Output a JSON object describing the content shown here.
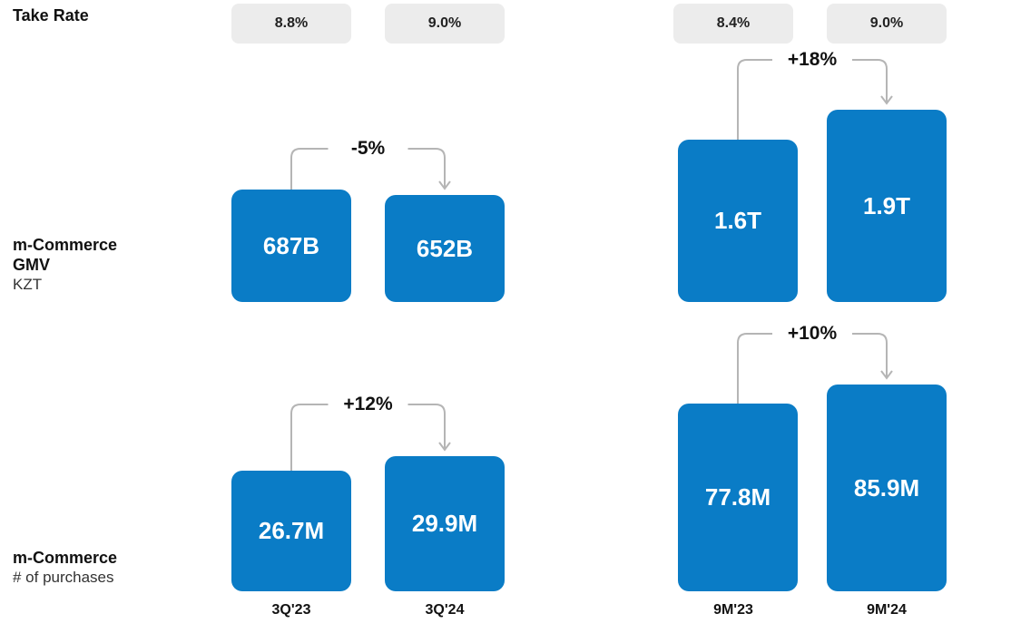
{
  "colors": {
    "bar": "#0a7cc6",
    "pill": "#ececec",
    "arrow": "#b5b5b5"
  },
  "labels": {
    "take_rate": "Take Rate",
    "gmv_title_1": "m-Commerce",
    "gmv_title_2": "GMV",
    "gmv_unit": "KZT",
    "purchases_title": "m-Commerce",
    "purchases_sub": "# of purchases"
  },
  "take_rate": [
    "8.8%",
    "9.0%",
    "8.4%",
    "9.0%"
  ],
  "categories": [
    "3Q'23",
    "3Q'24",
    "9M'23",
    "9M'24"
  ],
  "chart_data": [
    {
      "type": "bar",
      "title": "",
      "unit": "KZT",
      "categories": [
        "3Q'23",
        "3Q'24"
      ],
      "values": [
        687,
        652
      ],
      "value_labels": [
        "687B",
        "652B"
      ],
      "growth_label": "-5%"
    },
    {
      "type": "bar",
      "title": "",
      "unit": "KZT",
      "categories": [
        "9M'23",
        "9M'24"
      ],
      "values": [
        1.6,
        1.9
      ],
      "value_labels": [
        "1.6T",
        "1.9T"
      ],
      "growth_label": "+18%"
    },
    {
      "type": "bar",
      "title": "",
      "categories": [
        "3Q'23",
        "3Q'24"
      ],
      "values": [
        26.7,
        29.9
      ],
      "value_labels": [
        "26.7M",
        "29.9M"
      ],
      "growth_label": "+12%"
    },
    {
      "type": "bar",
      "title": "",
      "categories": [
        "9M'23",
        "9M'24"
      ],
      "values": [
        77.8,
        85.9
      ],
      "value_labels": [
        "77.8M",
        "85.9M"
      ],
      "growth_label": "+10%"
    }
  ]
}
